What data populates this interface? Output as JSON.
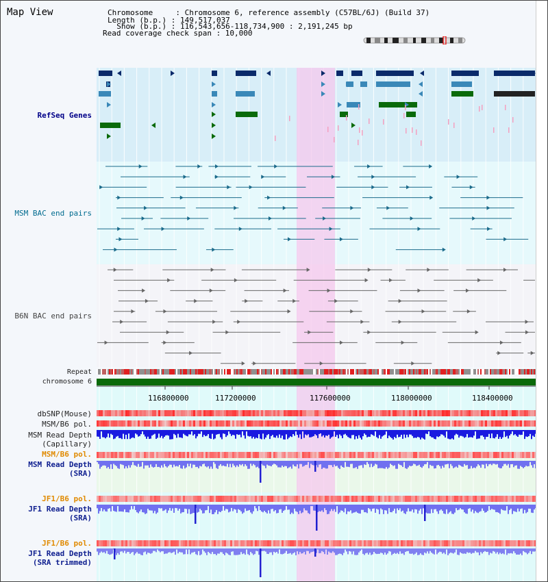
{
  "title": "Map View",
  "info": {
    "line1": "Chromosome     : Chromosome 6, reference assembly (C57BL/6J) (Build 37)",
    "line2": "Length (b.p.) : 149,517,037",
    "line3": "  Show (b.p.) : 116,543,656-118,734,900 : 2,191,245 bp",
    "line4": "Read coverage check span : 10,000"
  },
  "tracks": {
    "refseq": "RefSeq Genes",
    "msm_bac": "MSM BAC end pairs",
    "b6n_bac": "B6N BAC end pairs",
    "repeat": "Repeat",
    "chromosome": "chromosome 6",
    "dbsnp": "dbSNP(Mouse)",
    "msm_pol": "MSM/B6 pol.",
    "msm_depth_cap_1": "MSM Read Depth",
    "msm_depth_cap_2": "(Capillary)",
    "msm_pol2": "MSM/B6 pol.",
    "msm_sra_1": "MSM Read Depth",
    "msm_sra_2": "(SRA)",
    "jf1_pol": "JF1/B6 pol.",
    "jf1_sra_1": "JF1 Read Depth",
    "jf1_sra_2": "(SRA)",
    "jf1_pol2": "JF1/B6 pol.",
    "jf1_trim_1": "JF1 Read Depth",
    "jf1_trim_2": "(SRA trimmed)"
  },
  "axis": {
    "ticks": [
      "116800000",
      "117200000",
      "117600000",
      "118000000",
      "118400000"
    ]
  },
  "colors": {
    "refseq_bg": "#d8eef8",
    "highlight": "#f8d0f0",
    "refseq_navy": "#0a2a6a",
    "refseq_mid": "#3a88b8",
    "refseq_green": "#0a6a0a",
    "msm_line": "#1a6a8a",
    "b6n_line": "#666666",
    "chromosome_bar": "#0a6a0a",
    "depth_blue": "#1a1ae0",
    "depth_light": "#7070f0",
    "pol_red": "#f04040"
  }
}
